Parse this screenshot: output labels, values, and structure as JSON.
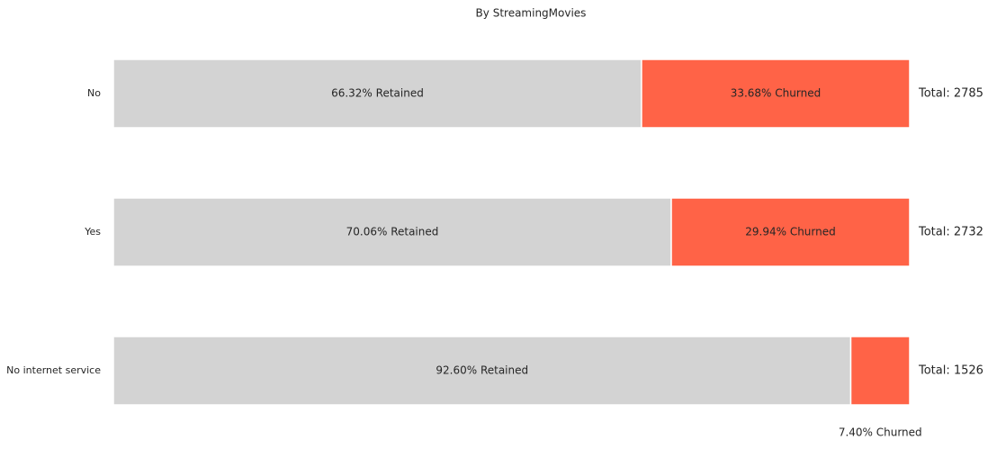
{
  "chart_data": {
    "type": "stacked-bar-horizontal",
    "title": "By StreamingMovies",
    "categories": [
      "No",
      "Yes",
      "No internet service"
    ],
    "xlim": [
      0,
      100
    ],
    "series": [
      {
        "name": "Retained",
        "color": "#d3d3d3",
        "values": [
          66.32,
          70.06,
          92.6
        ],
        "value_labels": [
          "66.32% Retained",
          "70.06% Retained",
          "92.60% Retained"
        ]
      },
      {
        "name": "Churned",
        "color": "#ff6347",
        "values": [
          33.68,
          29.94,
          7.4
        ],
        "value_labels": [
          "33.68% Churned",
          "29.94% Churned",
          "7.40% Churned"
        ]
      }
    ],
    "totals": {
      "values": [
        2785,
        2732,
        1526
      ],
      "value_labels": [
        "Total: 2785",
        "Total: 2732",
        "Total: 1526"
      ]
    }
  }
}
